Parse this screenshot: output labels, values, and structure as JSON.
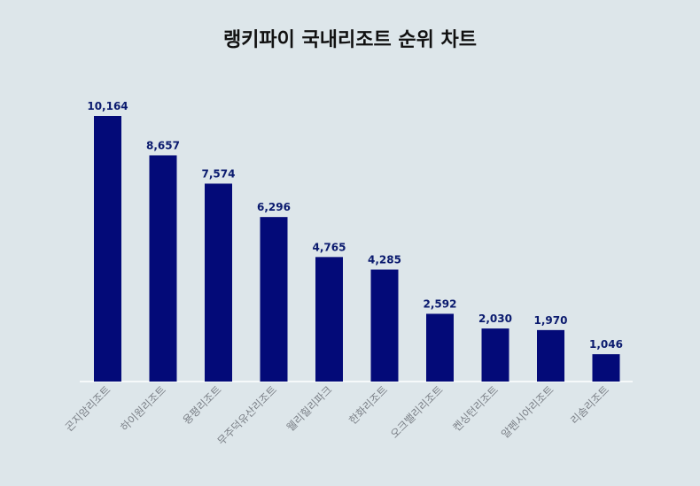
{
  "chart_data": {
    "type": "bar",
    "title": "랭키파이 국내리조트 순위 차트",
    "categories": [
      "곤지암리조트",
      "하이원리조트",
      "용평리조트",
      "무주덕유산리조트",
      "웰리힐리파크",
      "한화리조트",
      "오크밸리리조트",
      "켄싱턴리조트",
      "알펜시아리조트",
      "리솜리조트"
    ],
    "values": [
      10164,
      8657,
      7574,
      6296,
      4765,
      4285,
      2592,
      2030,
      1970,
      1046
    ],
    "value_labels": [
      "10,164",
      "8,657",
      "7,574",
      "6,296",
      "4,765",
      "4,285",
      "2,592",
      "2,030",
      "1,970",
      "1,046"
    ],
    "xlabel": "",
    "ylabel": "",
    "ylim": [
      0,
      10164
    ],
    "grid": false,
    "legend": "none",
    "bar_color": "#030a78",
    "background_color": "#dde6ea"
  }
}
